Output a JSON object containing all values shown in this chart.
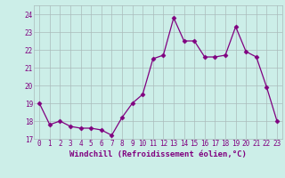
{
  "x": [
    0,
    1,
    2,
    3,
    4,
    5,
    6,
    7,
    8,
    9,
    10,
    11,
    12,
    13,
    14,
    15,
    16,
    17,
    18,
    19,
    20,
    21,
    22,
    23
  ],
  "y": [
    19.0,
    17.8,
    18.0,
    17.7,
    17.6,
    17.6,
    17.5,
    17.2,
    18.2,
    19.0,
    19.5,
    21.5,
    21.7,
    23.8,
    22.5,
    22.5,
    21.6,
    21.6,
    21.7,
    23.3,
    21.9,
    21.6,
    19.9,
    18.0
  ],
  "line_color": "#800080",
  "marker": "D",
  "marker_size": 2.5,
  "bg_color": "#cceee8",
  "grid_color": "#aabbbb",
  "xlabel": "Windchill (Refroidissement éolien,°C)",
  "ylim": [
    17.0,
    24.5
  ],
  "yticks": [
    17,
    18,
    19,
    20,
    21,
    22,
    23,
    24
  ],
  "xticks": [
    0,
    1,
    2,
    3,
    4,
    5,
    6,
    7,
    8,
    9,
    10,
    11,
    12,
    13,
    14,
    15,
    16,
    17,
    18,
    19,
    20,
    21,
    22,
    23
  ],
  "tick_fontsize": 5.5,
  "xlabel_fontsize": 6.5,
  "label_color": "#800080",
  "tick_color": "#800080"
}
